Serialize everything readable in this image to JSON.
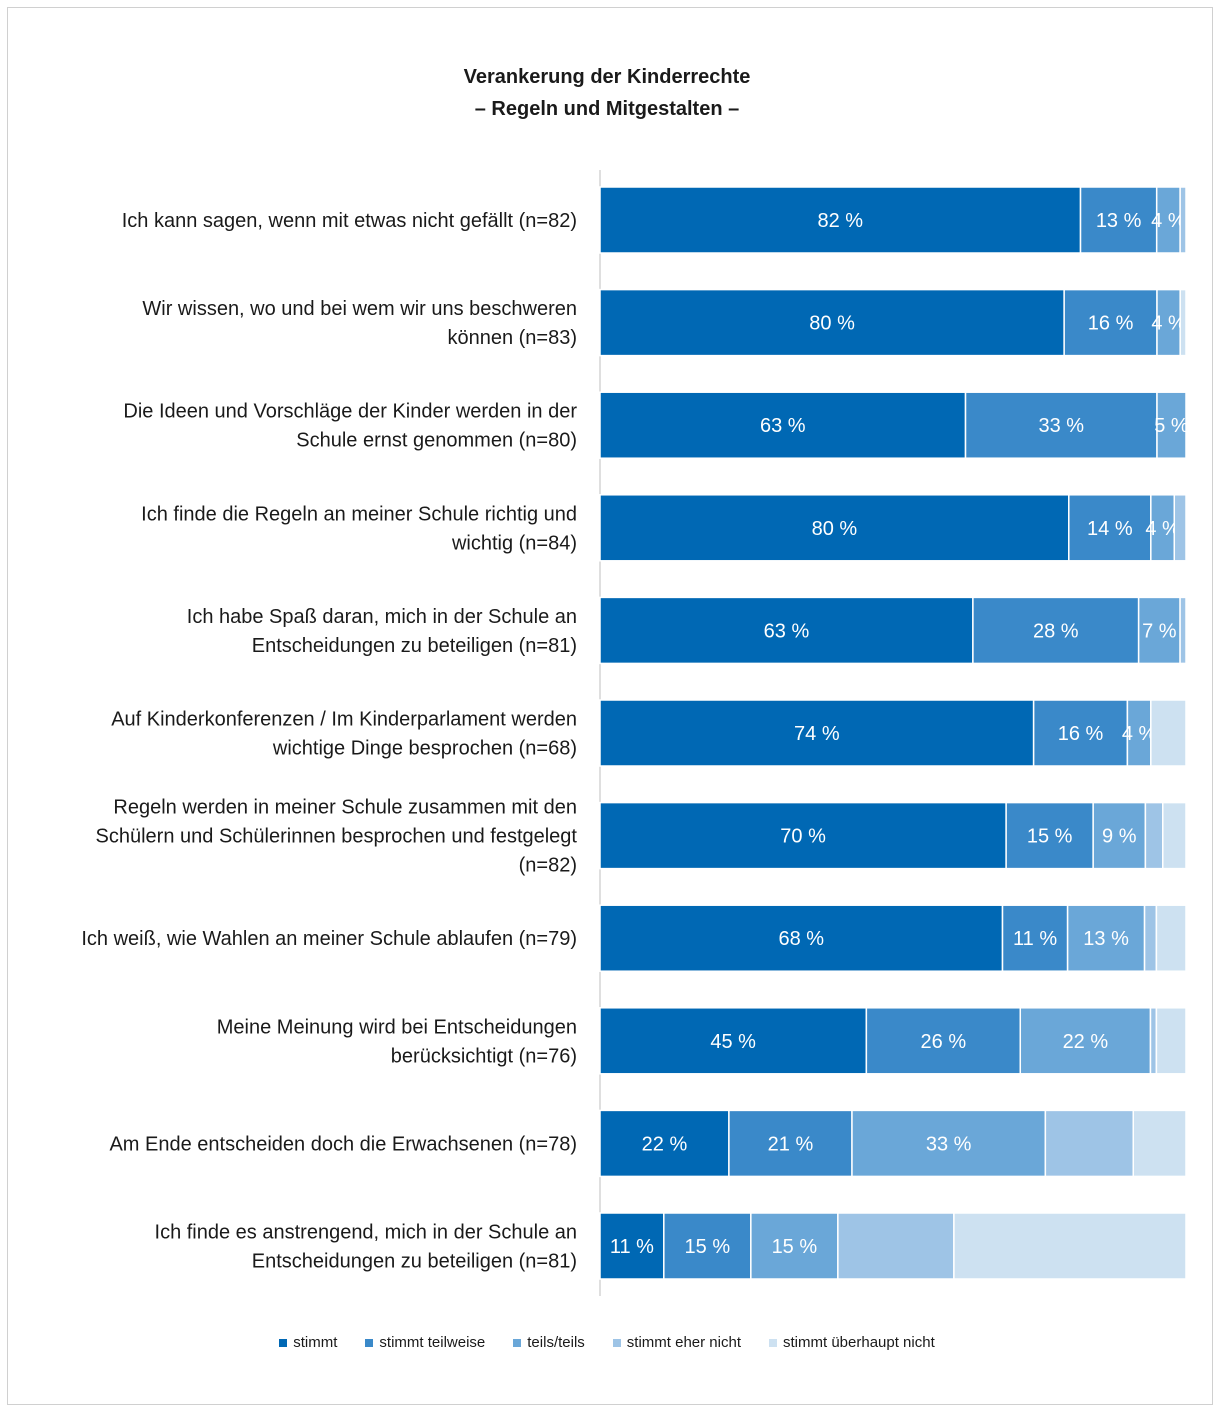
{
  "chart_data": {
    "type": "bar",
    "orientation": "horizontal",
    "stacked": true,
    "title": "Verankerung der Kinderrechte",
    "subtitle": "– Regeln und Mitgestalten –",
    "xlim": [
      0,
      100
    ],
    "grid": false,
    "legend_position": "bottom",
    "categories": [
      "Ich kann sagen, wenn mit etwas nicht gefällt (n=82)",
      "Wir wissen, wo und bei wem wir uns beschweren können (n=83)",
      "Die Ideen und Vorschläge der Kinder werden in der Schule ernst genommen (n=80)",
      "Ich finde die Regeln an meiner Schule richtig und wichtig (n=84)",
      "Ich habe Spaß daran, mich in der Schule an Entscheidungen zu beteiligen (n=81)",
      "Auf Kinderkonferenzen / Im Kinderparlament werden wichtige Dinge besprochen (n=68)",
      "Regeln werden in meiner Schule zusammen mit den Schülern und Schülerinnen besprochen und festgelegt (n=82)",
      "Ich weiß, wie Wahlen an meiner Schule ablaufen (n=79)",
      "Meine Meinung wird bei Entscheidungen berücksichtigt (n=76)",
      "Am Ende entscheiden doch die Erwachsenen (n=78)",
      "Ich finde es anstrengend, mich in der Schule an Entscheidungen zu beteiligen (n=81)"
    ],
    "category_lines": [
      [
        "Ich kann sagen, wenn mit etwas nicht gefällt (n=82)"
      ],
      [
        "Wir wissen, wo und bei wem wir uns beschweren",
        "können (n=83)"
      ],
      [
        "Die Ideen und Vorschläge der Kinder werden in der",
        "Schule ernst genommen (n=80)"
      ],
      [
        "Ich finde die Regeln an meiner Schule richtig und",
        "wichtig (n=84)"
      ],
      [
        "Ich habe Spaß daran, mich in der Schule an",
        "Entscheidungen zu beteiligen (n=81)"
      ],
      [
        "Auf Kinderkonferenzen / Im Kinderparlament werden",
        "wichtige Dinge besprochen (n=68)"
      ],
      [
        "Regeln werden in meiner Schule zusammen mit den",
        "Schülern und Schülerinnen besprochen und festgelegt",
        "(n=82)"
      ],
      [
        "Ich weiß, wie Wahlen an meiner Schule ablaufen (n=79)"
      ],
      [
        "Meine Meinung wird bei Entscheidungen",
        "berücksichtigt (n=76)"
      ],
      [
        "Am Ende entscheiden doch die Erwachsenen (n=78)"
      ],
      [
        "Ich finde es anstrengend, mich in der Schule an",
        "Entscheidungen zu beteiligen (n=81)"
      ]
    ],
    "series": [
      {
        "name": "stimmt",
        "color": "#0068b4",
        "values": [
          82,
          80,
          63,
          80,
          63,
          74,
          70,
          68,
          45,
          22,
          11
        ],
        "labels": [
          "82 %",
          "80 %",
          "63 %",
          "80 %",
          "63 %",
          "74 %",
          "70 %",
          "68 %",
          "45 %",
          "22 %",
          "11 %"
        ]
      },
      {
        "name": "stimmt teilweise",
        "color": "#3a89c9",
        "values": [
          13,
          16,
          33,
          14,
          28,
          16,
          15,
          11,
          26,
          21,
          15
        ],
        "labels": [
          "13 %",
          "16 %",
          "33 %",
          "14 %",
          "28 %",
          "16 %",
          "15 %",
          "11 %",
          "26 %",
          "21 %",
          "15 %"
        ]
      },
      {
        "name": "teils/teils",
        "color": "#6aa7d8",
        "values": [
          4,
          4,
          5,
          4,
          7,
          4,
          9,
          13,
          22,
          33,
          15
        ],
        "labels": [
          "4 %",
          "4 %",
          "5 %",
          "4 %",
          "7 %",
          "4 %",
          "9 %",
          "13 %",
          "22 %",
          "33 %",
          "15 %"
        ]
      },
      {
        "name": "stimmt eher nicht",
        "color": "#9ec4e6",
        "values": [
          1,
          0,
          0,
          2,
          1,
          0,
          3,
          2,
          1,
          15,
          20
        ],
        "labels": [
          "",
          "",
          "",
          "",
          "",
          "",
          "",
          "",
          "",
          "",
          ""
        ]
      },
      {
        "name": "stimmt überhaupt nicht",
        "color": "#cde1f1",
        "values": [
          0,
          1,
          0,
          0,
          0,
          6,
          4,
          5,
          5,
          9,
          40
        ],
        "labels": [
          "",
          "",
          "",
          "",
          "",
          "",
          "",
          "",
          "",
          "",
          ""
        ]
      }
    ]
  }
}
